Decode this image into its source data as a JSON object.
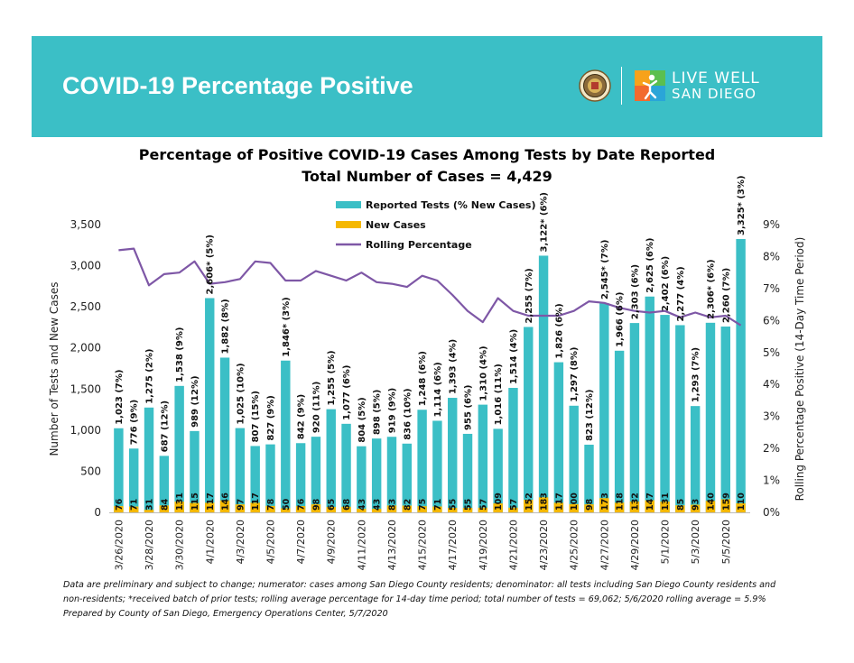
{
  "banner": {
    "title": "COVID-19 Percentage Positive",
    "logo_line1": "LIVE WELL",
    "logo_line2": "SAN DIEGO",
    "seal_icon": "county-seal-icon",
    "logo_icon": "live-well-figure-icon",
    "background_color": "#3bbfc6"
  },
  "chart_data": {
    "type": "bar",
    "title": "Percentage of Positive COVID-19 Cases Among Tests by Date Reported",
    "subtitle": "Total Number of Cases = 4,429",
    "ylabel": "Number of Tests and New Cases",
    "y2label": "Rolling Percentage Positive (14-Day Time Period)",
    "ylim": [
      0,
      3500
    ],
    "y2lim": [
      0,
      9
    ],
    "yticks": [
      "0",
      "500",
      "1,000",
      "1,500",
      "2,000",
      "2,500",
      "3,000",
      "3,500"
    ],
    "y2ticks": [
      "0%",
      "1%",
      "2%",
      "3%",
      "4%",
      "5%",
      "6%",
      "7%",
      "8%",
      "9%"
    ],
    "xtick_labels": [
      "3/26/2020",
      "3/28/2020",
      "3/30/2020",
      "4/1/2020",
      "4/3/2020",
      "4/5/2020",
      "4/7/2020",
      "4/9/2020",
      "4/11/2020",
      "4/13/2020",
      "4/15/2020",
      "4/17/2020",
      "4/19/2020",
      "4/21/2020",
      "4/23/2020",
      "4/25/2020",
      "4/27/2020",
      "4/29/2020",
      "5/1/2020",
      "5/3/2020",
      "5/5/2020"
    ],
    "legend_position": "top-left",
    "grid": false,
    "colors": {
      "tests": "#3bbfc6",
      "cases": "#f5b800",
      "rolling": "#7e57a6"
    },
    "series": [
      {
        "name": "Reported Tests (% New Cases)",
        "values": [
          1023,
          776,
          1275,
          687,
          1538,
          989,
          2606,
          1882,
          1025,
          807,
          827,
          1846,
          842,
          920,
          1255,
          1077,
          804,
          898,
          919,
          836,
          1248,
          1114,
          1393,
          955,
          1310,
          1016,
          1514,
          2255,
          3122,
          1826,
          1297,
          823,
          2545,
          1966,
          2303,
          2625,
          2402,
          2277,
          1293,
          2306,
          2260,
          3325
        ],
        "labels": [
          "1,023 (7%)",
          "776 (9%)",
          "1,275 (2%)",
          "687 (12%)",
          "1,538 (9%)",
          "989 (12%)",
          "2,606* (5%)",
          "1,882 (8%)",
          "1,025 (10%)",
          "807 (15%)",
          "827 (9%)",
          "1,846* (3%)",
          "842 (9%)",
          "920 (11%)",
          "1,255 (5%)",
          "1,077 (6%)",
          "804 (5%)",
          "898 (5%)",
          "919 (9%)",
          "836 (10%)",
          "1,248 (6%)",
          "1,114 (6%)",
          "1,393 (4%)",
          "955 (6%)",
          "1,310 (4%)",
          "1,016 (11%)",
          "1,514 (4%)",
          "2,255 (7%)",
          "3,122* (6%)",
          "1,826 (6%)",
          "1,297 (8%)",
          "823 (12%)",
          "2,545* (7%)",
          "1,966 (6%)",
          "2,303 (6%)",
          "2,625 (6%)",
          "2,402 (6%)",
          "2,277 (4%)",
          "1,293 (7%)",
          "2,306* (6%)",
          "2,260 (7%)",
          "3,325* (3%)"
        ]
      },
      {
        "name": "New Cases",
        "values": [
          76,
          71,
          31,
          84,
          131,
          115,
          117,
          146,
          97,
          117,
          78,
          50,
          76,
          98,
          65,
          68,
          43,
          43,
          83,
          82,
          75,
          71,
          55,
          55,
          57,
          109,
          57,
          152,
          183,
          117,
          100,
          98,
          173,
          118,
          132,
          147,
          131,
          85,
          93,
          140,
          159,
          110
        ]
      },
      {
        "name": "Rolling Percentage",
        "values": [
          8.2,
          8.25,
          7.1,
          7.45,
          7.5,
          7.85,
          7.15,
          7.2,
          7.3,
          7.85,
          7.8,
          7.25,
          7.25,
          7.55,
          7.4,
          7.25,
          7.5,
          7.2,
          7.15,
          7.05,
          7.4,
          7.25,
          6.8,
          6.3,
          5.95,
          6.7,
          6.3,
          6.15,
          6.15,
          6.15,
          6.3,
          6.6,
          6.55,
          6.4,
          6.3,
          6.25,
          6.3,
          6.1,
          6.25,
          6.1,
          6.15,
          5.85
        ]
      }
    ]
  },
  "footnote": {
    "line1": "Data are preliminary and subject to change; numerator: cases among San Diego County residents; denominator: all tests including San Diego County residents and",
    "line2": "non-residents; *received batch of prior tests; rolling average percentage for 14-day time period; total number of tests = 69,062; 5/6/2020 rolling average = 5.9%",
    "line3": "Prepared by County of San Diego, Emergency Operations Center, 5/7/2020"
  }
}
